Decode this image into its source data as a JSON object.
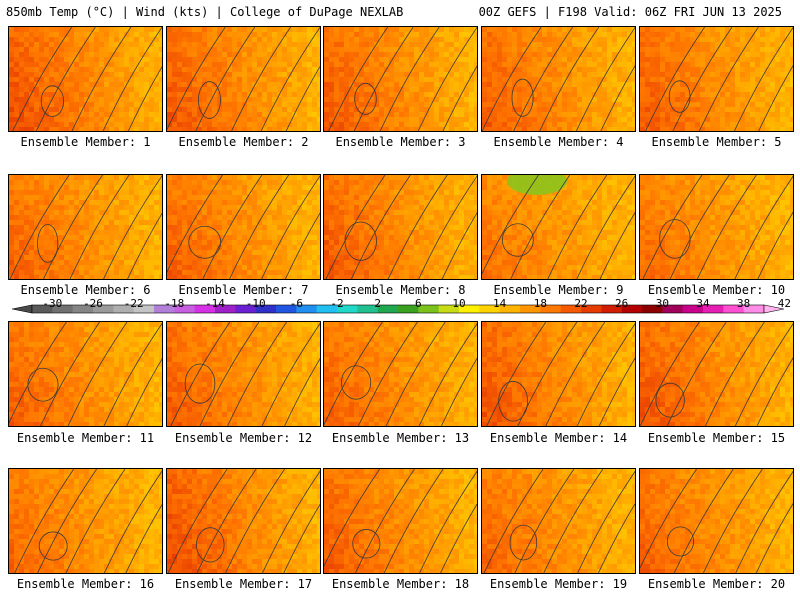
{
  "header": {
    "left": "850mb Temp (°C) | Wind (kts) | College of DuPage NEXLAB",
    "right": "00Z GEFS | F198 Valid: 06Z FRI JUN 13 2025"
  },
  "panels": [
    {
      "label": "Ensemble Member: 1",
      "member": 1,
      "warmth": 0.8
    },
    {
      "label": "Ensemble Member: 2",
      "member": 2,
      "warmth": 0.72
    },
    {
      "label": "Ensemble Member: 3",
      "member": 3,
      "warmth": 0.7
    },
    {
      "label": "Ensemble Member: 4",
      "member": 4,
      "warmth": 0.68
    },
    {
      "label": "Ensemble Member: 5",
      "member": 5,
      "warmth": 0.66
    },
    {
      "label": "Ensemble Member: 6",
      "member": 6,
      "warmth": 0.6
    },
    {
      "label": "Ensemble Member: 7",
      "member": 7,
      "warmth": 0.62
    },
    {
      "label": "Ensemble Member: 8",
      "member": 8,
      "warmth": 0.7
    },
    {
      "label": "Ensemble Member: 9",
      "member": 9,
      "warmth": 0.45
    },
    {
      "label": "Ensemble Member: 10",
      "member": 10,
      "warmth": 0.5
    },
    {
      "label": "Ensemble Member: 11",
      "member": 11,
      "warmth": 0.62
    },
    {
      "label": "Ensemble Member: 12",
      "member": 12,
      "warmth": 0.68
    },
    {
      "label": "Ensemble Member: 13",
      "member": 13,
      "warmth": 0.62
    },
    {
      "label": "Ensemble Member: 14",
      "member": 14,
      "warmth": 0.74
    },
    {
      "label": "Ensemble Member: 15",
      "member": 15,
      "warmth": 0.72
    },
    {
      "label": "Ensemble Member: 16",
      "member": 16,
      "warmth": 0.55
    },
    {
      "label": "Ensemble Member: 17",
      "member": 17,
      "warmth": 0.82
    },
    {
      "label": "Ensemble Member: 18",
      "member": 18,
      "warmth": 0.66
    },
    {
      "label": "Ensemble Member: 19",
      "member": 19,
      "warmth": 0.58
    },
    {
      "label": "Ensemble Member: 20",
      "member": 20,
      "warmth": 0.62
    }
  ],
  "colorbar": {
    "ticks": [
      "-30",
      "-26",
      "-22",
      "-18",
      "-14",
      "-10",
      "-6",
      "-2",
      "2",
      "6",
      "10",
      "14",
      "18",
      "22",
      "26",
      "30",
      "34",
      "38",
      "42"
    ],
    "colors": [
      "#5a5a5a",
      "#707070",
      "#858585",
      "#9a9a9a",
      "#afafaf",
      "#c4c4c4",
      "#b380d9",
      "#c65fe0",
      "#d631e6",
      "#a020c8",
      "#6a1fd0",
      "#3030c8",
      "#1f55e0",
      "#1f8ff0",
      "#20c0f0",
      "#20d8c8",
      "#20c090",
      "#20a850",
      "#3aa020",
      "#7cc21c",
      "#c8dc14",
      "#fff000",
      "#ffd200",
      "#ffb400",
      "#ff9600",
      "#ff7800",
      "#f55a00",
      "#e63c00",
      "#d21e00",
      "#b40000",
      "#8c0000",
      "#a0005a",
      "#c8008c",
      "#e61eb4",
      "#ff50d2",
      "#ff8ce6"
    ]
  }
}
